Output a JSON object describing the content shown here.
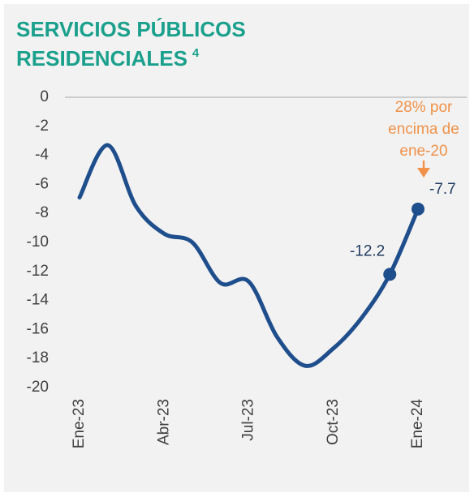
{
  "chart_data": {
    "type": "line",
    "title": [
      "SERVICIOS PÚBLICOS",
      "RESIDENCIALES"
    ],
    "title_note": "4",
    "categories": [
      "Ene-23",
      null,
      null,
      "Abr-23",
      null,
      null,
      "Jul-23",
      null,
      null,
      "Oct-23",
      null,
      null,
      "Ene-24"
    ],
    "series": [
      {
        "name": "Servicios públicos residenciales",
        "color": "#1f4e8c",
        "values": [
          -6.9,
          -3.3,
          -7.5,
          -9.4,
          -10.0,
          -12.8,
          -12.7,
          -16.5,
          -18.5,
          -17.3,
          -15.2,
          -12.2,
          -7.7
        ],
        "value_labels": [
          null,
          null,
          null,
          null,
          null,
          null,
          null,
          null,
          null,
          null,
          null,
          "-12.2",
          "-7.7"
        ]
      }
    ],
    "ylim": [
      -20,
      0
    ],
    "yticks": [
      0,
      -2,
      -4,
      -6,
      -8,
      -10,
      -12,
      -14,
      -16,
      -18,
      -20
    ],
    "grid": false,
    "annotation": {
      "lines": [
        "28% por",
        "encima de",
        "ene-20"
      ],
      "color": "#f0924a"
    }
  }
}
